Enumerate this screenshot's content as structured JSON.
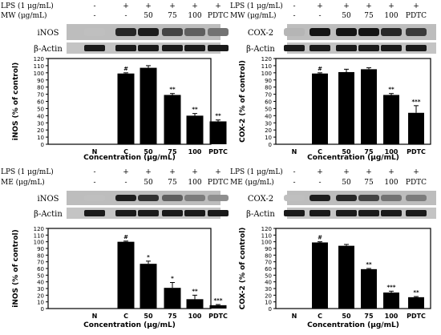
{
  "panels": [
    {
      "treatment_rows": [
        {
          "label": "LPS (1 μg/mL)",
          "marks": [
            "-",
            "+",
            "+",
            "+",
            "+",
            "+"
          ]
        },
        {
          "label": "MW (μg/mL)",
          "marks": [
            "-",
            "-",
            "50",
            "75",
            "100",
            "PDTC"
          ]
        }
      ],
      "blot_labels": [
        "iNOS",
        "β-Actin"
      ]
    },
    {
      "treatment_rows": [
        {
          "label": "LPS (1 μg/mL)",
          "marks": [
            "-",
            "+",
            "+",
            "+",
            "+",
            "+"
          ]
        },
        {
          "label": "MW (μg/mL)",
          "marks": [
            "-",
            "-",
            "50",
            "75",
            "100",
            "PDTC"
          ]
        }
      ],
      "blot_labels": [
        "COX-2",
        "β-Actin"
      ]
    },
    {
      "treatment_rows": [
        {
          "label": "LPS (1 μg/mL)",
          "marks": [
            "-",
            "+",
            "+",
            "+",
            "+",
            "+"
          ]
        },
        {
          "label": "ME (μg/mL)",
          "marks": [
            "-",
            "-",
            "50",
            "75",
            "100",
            "PDTC"
          ]
        }
      ],
      "blot_labels": [
        "iNOS",
        "β-Actin"
      ]
    },
    {
      "treatment_rows": [
        {
          "label": "LPS (1 μg/mL)",
          "marks": [
            "-",
            "+",
            "+",
            "+",
            "+",
            "+"
          ]
        },
        {
          "label": "ME (μg/mL)",
          "marks": [
            "-",
            "-",
            "50",
            "75",
            "100",
            "PDTC"
          ]
        }
      ],
      "blot_labels": [
        "COX-2",
        "β-Actin"
      ]
    }
  ],
  "chart_data": [
    {
      "type": "bar",
      "categories": [
        "N",
        "C",
        "50",
        "75",
        "100",
        "PDTC"
      ],
      "values": [
        0,
        99,
        107,
        69,
        40,
        32
      ],
      "errors": [
        0,
        1,
        3,
        2,
        3,
        2
      ],
      "significance": [
        "",
        "#",
        "",
        "**",
        "**",
        "**"
      ],
      "xlabel": "Concentration (μg/mL)",
      "ylabel": "iNOS (% of control)",
      "ylim": [
        0,
        120
      ],
      "yticks": [
        0,
        10,
        20,
        30,
        40,
        50,
        60,
        70,
        80,
        90,
        100,
        110,
        120
      ],
      "bar_color": "#000000"
    },
    {
      "type": "bar",
      "categories": [
        "N",
        "C",
        "50",
        "75",
        "100",
        "PDTC"
      ],
      "values": [
        0,
        99,
        101,
        105,
        69,
        44
      ],
      "errors": [
        0,
        1,
        4,
        2,
        2,
        10
      ],
      "significance": [
        "",
        "#",
        "",
        "",
        "**",
        "***"
      ],
      "xlabel": "Concentration (μg/mL)",
      "ylabel": "COX-2 (% of control)",
      "ylim": [
        0,
        120
      ],
      "yticks": [
        0,
        10,
        20,
        30,
        40,
        50,
        60,
        70,
        80,
        90,
        100,
        110,
        120
      ],
      "bar_color": "#000000"
    },
    {
      "type": "bar",
      "categories": [
        "N",
        "C",
        "50",
        "75",
        "100",
        "PDTC"
      ],
      "values": [
        0,
        100,
        67,
        31,
        14,
        5
      ],
      "errors": [
        0,
        1,
        4,
        8,
        6,
        1
      ],
      "significance": [
        "",
        "#",
        "*",
        "*",
        "**",
        "***"
      ],
      "xlabel": "Concentration (μg/mL)",
      "ylabel": "iNOS (% of control)",
      "ylim": [
        0,
        120
      ],
      "yticks": [
        0,
        10,
        20,
        30,
        40,
        50,
        60,
        70,
        80,
        90,
        100,
        110,
        120
      ],
      "bar_color": "#000000"
    },
    {
      "type": "bar",
      "categories": [
        "N",
        "C",
        "50",
        "75",
        "100",
        "PDTC"
      ],
      "values": [
        0,
        99,
        94,
        59,
        24,
        17
      ],
      "errors": [
        0,
        1,
        2,
        1,
        2,
        1
      ],
      "significance": [
        "",
        "#",
        "",
        "**",
        "***",
        "**"
      ],
      "xlabel": "Concentration (μg/mL)",
      "ylabel": "COX-2 (% of control)",
      "ylim": [
        0,
        120
      ],
      "yticks": [
        0,
        10,
        20,
        30,
        40,
        50,
        60,
        70,
        80,
        90,
        100,
        110,
        120
      ],
      "bar_color": "#000000"
    }
  ]
}
